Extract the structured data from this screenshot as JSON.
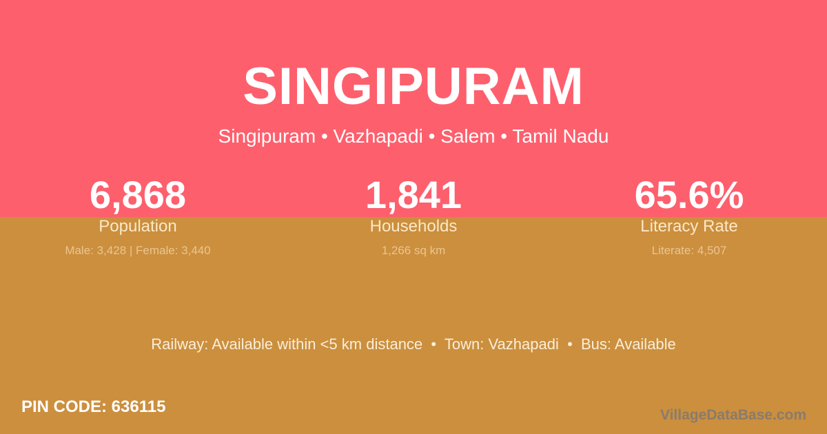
{
  "title": "SINGIPURAM",
  "subtitle": "Singipuram • Vazhapadi • Salem • Tamil Nadu",
  "stats": [
    {
      "value": "6,868",
      "label": "Population",
      "detail": "Male: 3,428 | Female: 3,440"
    },
    {
      "value": "1,841",
      "label": "Households",
      "detail": "1,266 sq km"
    },
    {
      "value": "65.6%",
      "label": "Literacy Rate",
      "detail": "Literate: 4,507"
    }
  ],
  "info": "Railway: Available within <5 km distance  •  Town: Vazhapadi  •  Bus: Available",
  "pin": "PIN CODE: 636115",
  "watermark": "VillageDataBase.com",
  "colors": {
    "top": "#fe5f6d",
    "bottom": "#cb8f3e"
  }
}
